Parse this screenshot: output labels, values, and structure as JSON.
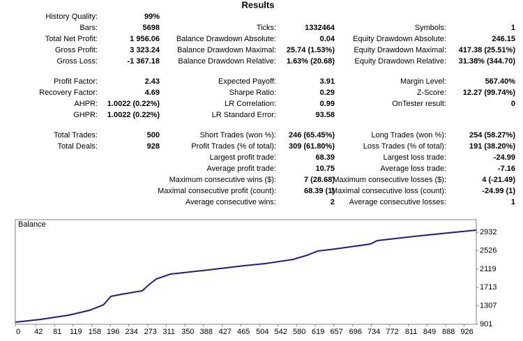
{
  "title": "Results",
  "sections": [
    [
      {
        "left": {
          "label": "History Quality:",
          "value": "99%"
        }
      },
      {
        "left": {
          "label": "Bars:",
          "value": "5698"
        },
        "middle": {
          "label": "Ticks:",
          "value": "1332464"
        },
        "right": {
          "label": "Symbols:",
          "value": "1"
        }
      },
      {
        "left": {
          "label": "Total Net Profit:",
          "value": "1 956.06"
        },
        "middle": {
          "label": "Balance Drawdown Absolute:",
          "value": "0.04"
        },
        "right": {
          "label": "Equity Drawdown Absolute:",
          "value": "246.15"
        }
      },
      {
        "left": {
          "label": "Gross Profit:",
          "value": "3 323.24"
        },
        "middle": {
          "label": "Balance Drawdown Maximal:",
          "value": "25.74 (1.53%)"
        },
        "right": {
          "label": "Equity Drawdown Maximal:",
          "value": "417.38 (25.51%)"
        }
      },
      {
        "left": {
          "label": "Gross Loss:",
          "value": "-1 367.18"
        },
        "middle": {
          "label": "Balance Drawdown Relative:",
          "value": "1.63% (20.68)"
        },
        "right": {
          "label": "Equity Drawdown Relative:",
          "value": "31.38% (344.70)"
        }
      }
    ],
    [
      {
        "left": {
          "label": "Profit Factor:",
          "value": "2.43"
        },
        "middle": {
          "label": "Expected Payoff:",
          "value": "3.91"
        },
        "right": {
          "label": "Margin Level:",
          "value": "567.40%"
        }
      },
      {
        "left": {
          "label": "Recovery Factor:",
          "value": "4.69"
        },
        "middle": {
          "label": "Sharpe Ratio:",
          "value": "0.29"
        },
        "right": {
          "label": "Z-Score:",
          "value": "12.27 (99.74%)"
        }
      },
      {
        "left": {
          "label": "AHPR:",
          "value": "1.0022 (0.22%)"
        },
        "middle": {
          "label": "LR Correlation:",
          "value": "0.99"
        },
        "right": {
          "label": "OnTester result:",
          "value": "0"
        }
      },
      {
        "left": {
          "label": "GHPR:",
          "value": "1.0022 (0.22%)"
        },
        "middle": {
          "label": "LR Standard Error:",
          "value": "93.58"
        }
      }
    ],
    [
      {
        "left": {
          "label": "Total Trades:",
          "value": "500"
        },
        "middle": {
          "label": "Short Trades (won %):",
          "value": "246 (65.45%)"
        },
        "right": {
          "label": "Long Trades (won %):",
          "value": "254 (58.27%)"
        }
      },
      {
        "left": {
          "label": "Total Deals:",
          "value": "928"
        },
        "middle": {
          "label": "Profit Trades (% of total):",
          "value": "309 (61.80%)"
        },
        "right": {
          "label": "Loss Trades (% of total):",
          "value": "191 (38.20%)"
        }
      },
      {
        "middle": {
          "label": "Largest profit trade:",
          "value": "68.39"
        },
        "right": {
          "label": "Largest loss trade:",
          "value": "-24.99"
        }
      },
      {
        "middle": {
          "label": "Average profit trade:",
          "value": "10.75"
        },
        "right": {
          "label": "Average loss trade:",
          "value": "-7.16"
        }
      },
      {
        "middle": {
          "label": "Maximum consecutive wins ($):",
          "value": "7 (28.68)"
        },
        "right": {
          "label": "Maximum consecutive losses ($):",
          "value": "4 (-21.49)"
        }
      },
      {
        "middle": {
          "label": "Maximal consecutive profit (count):",
          "value": "68.39 (1)"
        },
        "right": {
          "label": "Maximal consecutive loss (count):",
          "value": "-24.99 (1)"
        }
      },
      {
        "middle": {
          "label": "Average consecutive wins:",
          "value": "2"
        },
        "right": {
          "label": "Average consecutive losses:",
          "value": "1"
        }
      }
    ]
  ],
  "chart_data": {
    "type": "line",
    "title": "Balance",
    "color": "#1a1aa0",
    "x": [
      0,
      52,
      110,
      153,
      182,
      197,
      219,
      262,
      276,
      291,
      320,
      399,
      472,
      515,
      573,
      602,
      624,
      660,
      732,
      747,
      834,
      951
    ],
    "values": [
      947,
      1009,
      1101,
      1209,
      1332,
      1517,
      1563,
      1640,
      1778,
      1901,
      2009,
      2101,
      2194,
      2240,
      2332,
      2425,
      2517,
      2563,
      2671,
      2748,
      2855,
      2979
    ],
    "xlim": [
      0,
      951
    ],
    "xticks": [
      0,
      42,
      81,
      119,
      158,
      196,
      234,
      273,
      311,
      350,
      388,
      427,
      465,
      504,
      542,
      580,
      619,
      657,
      696,
      734,
      772,
      811,
      849,
      888,
      926
    ],
    "ylim": [
      901,
      3210
    ],
    "yticks": [
      901,
      1307,
      1713,
      2119,
      2526,
      2932
    ]
  }
}
